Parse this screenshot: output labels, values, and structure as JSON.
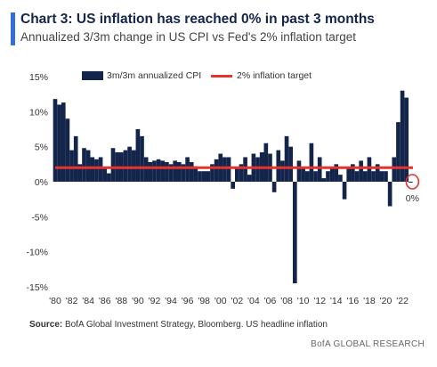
{
  "header": {
    "title": "Chart 3: US inflation has reached 0% in past 3 months",
    "subtitle": "Annualized 3/3m change in US CPI vs Fed's 2% inflation target"
  },
  "colors": {
    "accent": "#2f6fd6",
    "bars": "#13254b",
    "target": "#e8332c"
  },
  "chart_data": {
    "type": "bar",
    "legend": [
      "3m/3m annualized CPI",
      "2% inflation target"
    ],
    "legend_position": "top",
    "y_ticks": [
      "15%",
      "10%",
      "5%",
      "0%",
      "-5%",
      "-10%",
      "-15%"
    ],
    "y_tick_values": [
      15,
      10,
      5,
      0,
      -5,
      -10,
      -15
    ],
    "ylim": [
      -15,
      15
    ],
    "x_ticks": [
      "'80",
      "'82",
      "'84",
      "'86",
      "'88",
      "'90",
      "'92",
      "'94",
      "'96",
      "'98",
      "'00",
      "'02",
      "'04",
      "'06",
      "'08",
      "'10",
      "'12",
      "'14",
      "'16",
      "'18",
      "'20",
      "'22"
    ],
    "xlim": [
      1980,
      2023.5
    ],
    "target": 2,
    "annotation": "0%",
    "series": [
      {
        "name": "3m/3m annualized CPI",
        "x": [
          1980.0,
          1980.5,
          1981.0,
          1981.5,
          1982.0,
          1982.5,
          1983.0,
          1983.5,
          1984.0,
          1984.5,
          1985.0,
          1985.5,
          1986.0,
          1986.5,
          1987.0,
          1987.5,
          1988.0,
          1988.5,
          1989.0,
          1989.5,
          1990.0,
          1990.5,
          1991.0,
          1991.5,
          1992.0,
          1992.5,
          1993.0,
          1993.5,
          1994.0,
          1994.5,
          1995.0,
          1995.5,
          1996.0,
          1996.5,
          1997.0,
          1997.5,
          1998.0,
          1998.5,
          1999.0,
          1999.5,
          2000.0,
          2000.5,
          2001.0,
          2001.5,
          2002.0,
          2002.5,
          2003.0,
          2003.5,
          2004.0,
          2004.5,
          2005.0,
          2005.5,
          2006.0,
          2006.5,
          2007.0,
          2007.5,
          2008.0,
          2008.5,
          2009.0,
          2009.5,
          2010.0,
          2010.5,
          2011.0,
          2011.5,
          2012.0,
          2012.5,
          2013.0,
          2013.5,
          2014.0,
          2014.5,
          2015.0,
          2015.5,
          2016.0,
          2016.5,
          2017.0,
          2017.5,
          2018.0,
          2018.5,
          2019.0,
          2019.5,
          2020.0,
          2020.5,
          2021.0,
          2021.5,
          2022.0,
          2022.5,
          2023.0
        ],
        "values": [
          11.8,
          11.0,
          11.3,
          9.0,
          4.5,
          6.5,
          2.5,
          4.8,
          4.5,
          3.5,
          3.2,
          3.5,
          2.0,
          1.2,
          4.8,
          4.2,
          4.2,
          4.5,
          5.0,
          4.5,
          7.5,
          6.5,
          3.5,
          2.8,
          3.0,
          3.2,
          3.0,
          2.8,
          2.5,
          3.0,
          2.8,
          2.5,
          3.5,
          2.8,
          2.2,
          1.5,
          1.5,
          1.5,
          2.5,
          3.2,
          4.0,
          3.5,
          3.5,
          -1.0,
          2.0,
          2.5,
          3.5,
          1.0,
          4.0,
          3.5,
          4.2,
          5.5,
          4.0,
          -1.5,
          4.5,
          3.0,
          6.5,
          5.0,
          -14.5,
          3.0,
          2.0,
          1.5,
          5.5,
          1.5,
          3.5,
          0.5,
          1.5,
          2.0,
          2.5,
          1.0,
          -2.5,
          2.0,
          2.5,
          1.5,
          3.0,
          1.5,
          3.5,
          1.5,
          2.5,
          1.5,
          1.5,
          -3.5,
          3.5,
          8.5,
          13.0,
          12.0,
          0.0
        ]
      }
    ]
  },
  "footer": {
    "source_label": "Source:",
    "source_text": "BofA Global Investment Strategy, Bloomberg. US headline inflation",
    "brand": "BofA GLOBAL RESEARCH"
  }
}
